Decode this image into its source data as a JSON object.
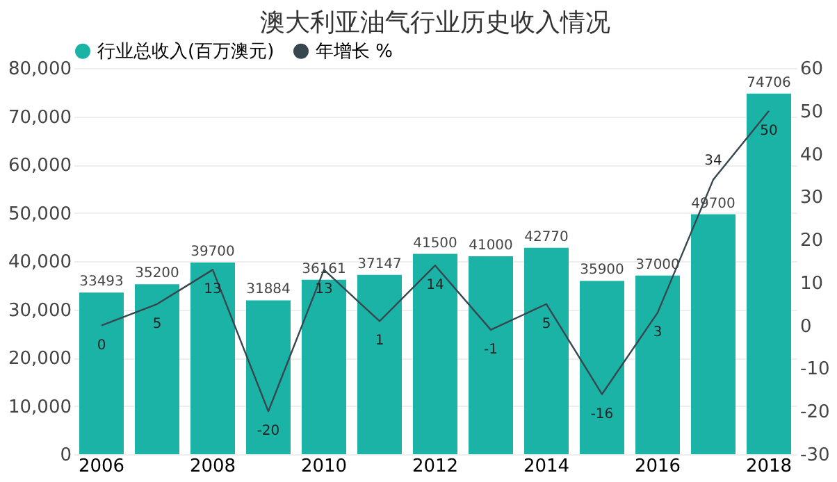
{
  "chart_data": {
    "type": "bar",
    "title": "澳大利亚油气行业历史收入情况",
    "categories": [
      "2006",
      null,
      "2008",
      null,
      "2010",
      null,
      "2012",
      null,
      "2014",
      null,
      "2016",
      null,
      "2018"
    ],
    "series": [
      {
        "name": "行业总收入(百万澳元)",
        "color": "#1ab3a6",
        "values": [
          33493,
          35200,
          39700,
          31884,
          36161,
          37147,
          41500,
          41000,
          42770,
          35900,
          37000,
          49700,
          74706
        ]
      },
      {
        "name": "年增长 %",
        "type": "line",
        "axis": "y2",
        "color": "#37474f",
        "values": [
          0,
          5,
          13,
          -20,
          13,
          1,
          14,
          -1,
          5,
          -16,
          3,
          34,
          50
        ]
      }
    ],
    "ylim": [
      0,
      80000
    ],
    "yticks": [
      {
        "value": 0,
        "label": "0"
      },
      {
        "value": 10000,
        "label": "10,000"
      },
      {
        "value": 20000,
        "label": "20,000"
      },
      {
        "value": 30000,
        "label": "30,000"
      },
      {
        "value": 40000,
        "label": "40,000"
      },
      {
        "value": 50000,
        "label": "50,000"
      },
      {
        "value": 60000,
        "label": "60,000"
      },
      {
        "value": 70000,
        "label": "70,000"
      },
      {
        "value": 80000,
        "label": "80,000"
      }
    ],
    "y2lim": [
      -30,
      60
    ],
    "y2ticks": [
      -30,
      -20,
      -10,
      0,
      10,
      20,
      30,
      40,
      50,
      60
    ],
    "grid": "y",
    "legend": "top left",
    "data_labels": true,
    "line_style": "solid",
    "marker": "none"
  }
}
